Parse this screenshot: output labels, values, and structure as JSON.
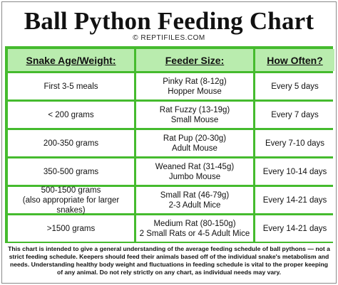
{
  "title": "Ball Python Feeding Chart",
  "credit": "© REPTIFILES.COM",
  "table": {
    "headers": [
      "Snake Age/Weight:",
      "Feeder Size:",
      "How Often?"
    ],
    "rows": [
      {
        "age": [
          "First 3-5 meals"
        ],
        "feeder": [
          "Pinky Rat (8-12g)",
          "Hopper Mouse"
        ],
        "often": "Every 5 days"
      },
      {
        "age": [
          "< 200 grams"
        ],
        "feeder": [
          "Rat Fuzzy (13-19g)",
          "Small Mouse"
        ],
        "often": "Every 7 days"
      },
      {
        "age": [
          "200-350 grams"
        ],
        "feeder": [
          "Rat Pup (20-30g)",
          "Adult Mouse"
        ],
        "often": "Every 7-10 days"
      },
      {
        "age": [
          "350-500 grams"
        ],
        "feeder": [
          "Weaned Rat (31-45g)",
          "Jumbo Mouse"
        ],
        "often": "Every 10-14 days"
      },
      {
        "age": [
          "500-1500 grams",
          "(also appropriate for larger snakes)"
        ],
        "feeder": [
          "Small Rat (46-79g)",
          "2-3 Adult Mice"
        ],
        "often": "Every 14-21 days"
      },
      {
        "age": [
          ">1500 grams"
        ],
        "feeder": [
          "Medium Rat (80-150g)",
          "2 Small Rats or 4-5 Adult Mice"
        ],
        "often": "Every 14-21 days"
      }
    ]
  },
  "disclaimer": "This chart is intended to give a general understanding of the average feeding schedule of ball pythons — not a strict feeding schedule. Keepers should feed their animals based off of the individual snake's metabolism and needs. Understanding healthy body weight and fluctuations in feeding schedule is vital to the proper keeping of any animal. Do not rely strictly on any chart, as individual needs may vary.",
  "colors": {
    "grid": "#45bb2e",
    "header_fill": "#b9ecae"
  }
}
